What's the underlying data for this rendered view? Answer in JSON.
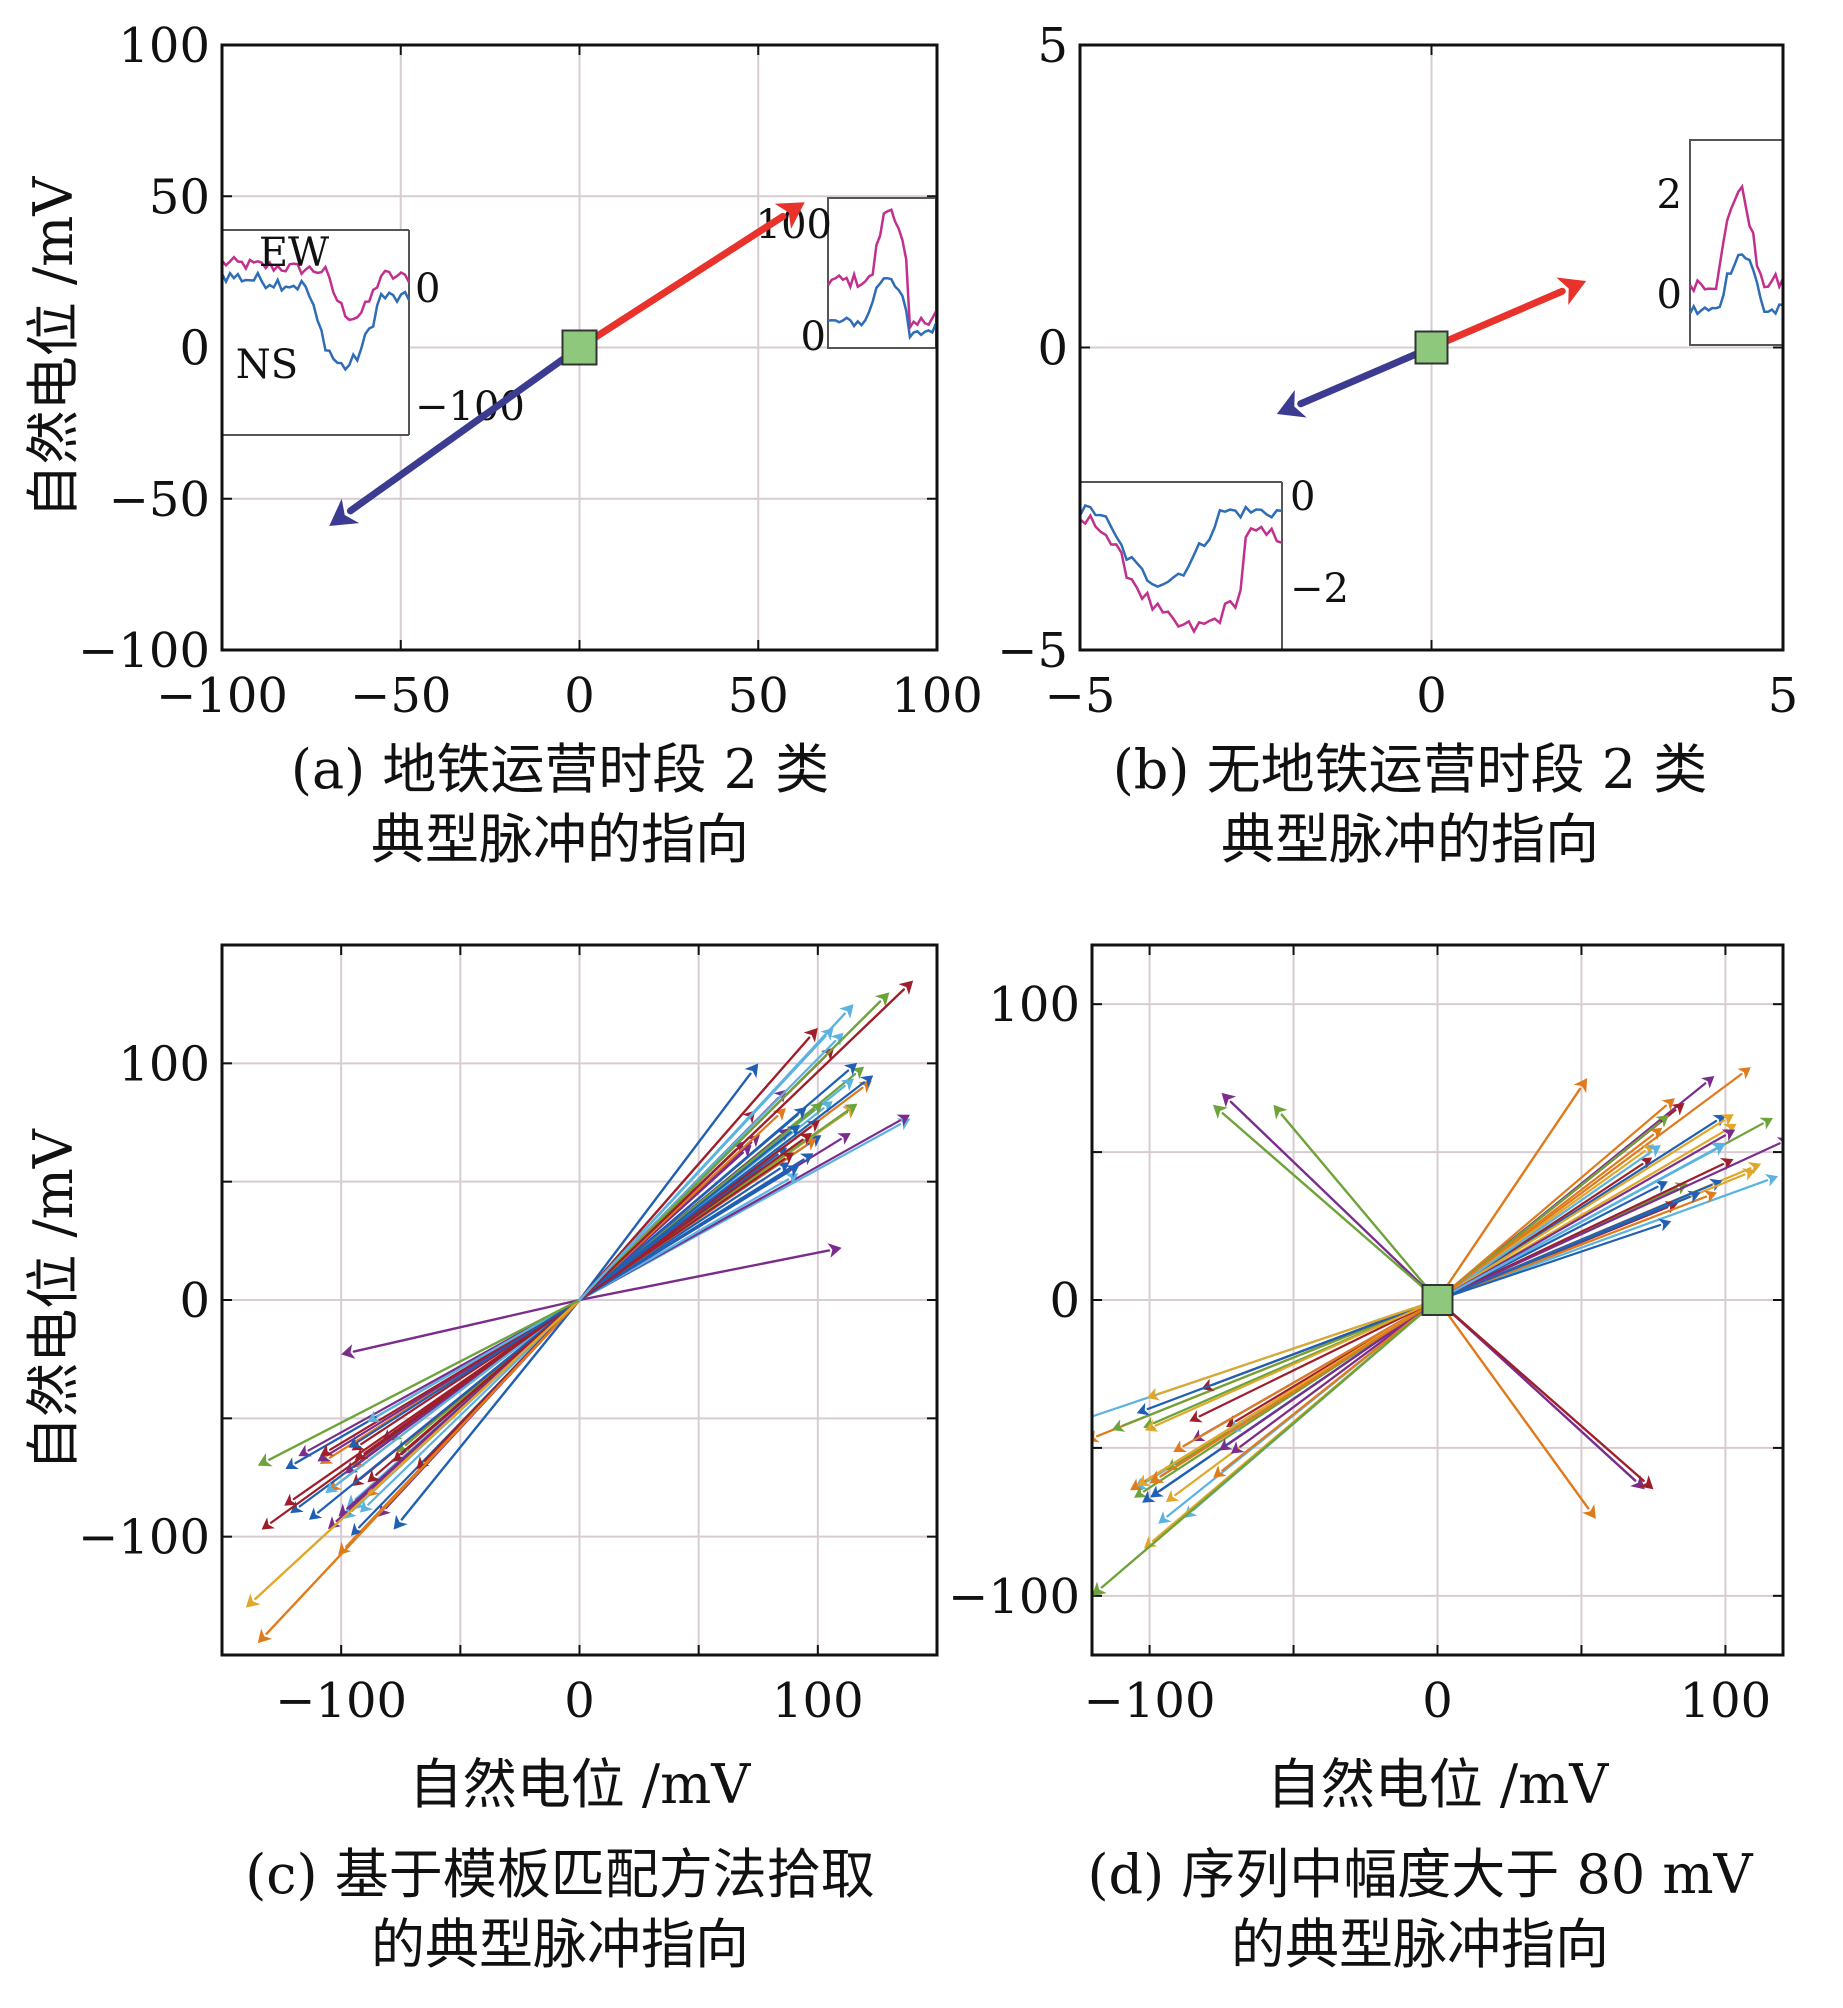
{
  "colors": {
    "purple": "#3b3b92",
    "red": "#e8322b",
    "green": "#8dc87c",
    "ew_line": "#c0308c",
    "ns_line": "#2f6db6",
    "grid": "#d7ccd2",
    "palette": [
      "#1f5fb4",
      "#e07b1d",
      "#e0a82a",
      "#7a2d8c",
      "#6ea33b",
      "#5ab3e0",
      "#9e1f2b"
    ]
  },
  "chart_data": [
    {
      "id": "a",
      "type": "scatter",
      "title": "(a) 地铁运营时段 2 类 典型脉冲的指向",
      "ylabel": "自然电位 /mV",
      "xlabel": "",
      "xlim": [
        -100,
        100
      ],
      "ylim": [
        -100,
        100
      ],
      "xticks": [
        -100,
        -50,
        0,
        50,
        100
      ],
      "yticks": [
        -100,
        -50,
        0,
        50,
        100
      ],
      "x_tick_labels": [
        "−100",
        "−50",
        "0",
        "50",
        "100"
      ],
      "y_tick_labels": [
        "−100",
        "−50",
        "0",
        "50",
        "100"
      ],
      "grid": true,
      "origin_marker": "green square",
      "vectors": [
        {
          "name": "purple",
          "dx": -70,
          "dy": -59
        },
        {
          "name": "red",
          "dx": 63,
          "dy": 48
        }
      ],
      "insets": [
        {
          "name": "left-inset",
          "labels": [
            "EW",
            "NS"
          ],
          "tick_labels": [
            "0",
            "−100"
          ],
          "ticks": [
            0,
            -100
          ]
        },
        {
          "name": "right-inset",
          "tick_labels": [
            "100",
            "0"
          ],
          "ticks": [
            100,
            0
          ]
        }
      ]
    },
    {
      "id": "b",
      "type": "scatter",
      "title": "(b) 无地铁运营时段 2 类 典型脉冲的指向",
      "ylabel": "",
      "xlabel": "",
      "xlim": [
        -5,
        5
      ],
      "ylim": [
        -5,
        5
      ],
      "xticks": [
        -5,
        0,
        5
      ],
      "yticks": [
        -5,
        0,
        5
      ],
      "x_tick_labels": [
        "−5",
        "0",
        "5"
      ],
      "y_tick_labels": [
        "−5",
        "0",
        "5"
      ],
      "grid": true,
      "origin_marker": "green square",
      "vectors": [
        {
          "name": "purple",
          "dx": -2.2,
          "dy": -1.1
        },
        {
          "name": "red",
          "dx": 2.2,
          "dy": 1.1
        }
      ],
      "insets": [
        {
          "name": "upper-right-inset",
          "tick_labels": [
            "2",
            "0"
          ],
          "ticks": [
            2,
            0
          ]
        },
        {
          "name": "lower-left-inset",
          "tick_labels": [
            "0",
            "−2"
          ],
          "ticks": [
            0,
            -2
          ]
        }
      ]
    },
    {
      "id": "c",
      "type": "scatter",
      "title": "(c) 基于模板匹配方法拾取 的典型脉冲指向",
      "ylabel": "自然电位 /mV",
      "xlabel": "自然电位 /mV",
      "xlim": [
        -150,
        150
      ],
      "ylim": [
        -150,
        150
      ],
      "xticks": [
        -100,
        0,
        100
      ],
      "yticks": [
        -100,
        0,
        100
      ],
      "x_tick_labels": [
        "−100",
        "0",
        "100"
      ],
      "y_tick_labels": [
        "−100",
        "0",
        "100"
      ],
      "grid": true,
      "vectors": [
        {
          "dx": 75,
          "dy": 100,
          "c": 0
        },
        {
          "dx": -78,
          "dy": -97,
          "c": 0
        },
        {
          "dx": 110,
          "dy": 22,
          "c": 3
        },
        {
          "dx": -100,
          "dy": -23,
          "c": 3
        },
        {
          "dx": 130,
          "dy": 130,
          "c": 4
        },
        {
          "dx": 140,
          "dy": 135,
          "c": 6
        },
        {
          "dx": -135,
          "dy": -145,
          "c": 1
        },
        {
          "dx": -140,
          "dy": -130,
          "c": 2
        },
        {
          "dx": -135,
          "dy": -70,
          "c": 4
        },
        {
          "dx": 100,
          "dy": 115,
          "c": 6
        },
        {
          "dx": 115,
          "dy": 125,
          "c": 5
        }
      ],
      "bundle": {
        "count": 70,
        "angle_range_deg": [
          28,
          48
        ],
        "length_range": [
          95,
          165
        ]
      }
    },
    {
      "id": "d",
      "type": "scatter",
      "title": "(d) 序列中幅度大于 80 mV 的典型脉冲指向",
      "ylabel": "",
      "xlabel": "自然电位 /mV",
      "xlim": [
        -120,
        120
      ],
      "ylim": [
        -120,
        120
      ],
      "xticks": [
        -100,
        0,
        100
      ],
      "yticks": [
        -100,
        0,
        100
      ],
      "x_tick_labels": [
        "−100",
        "0",
        "100"
      ],
      "y_tick_labels": [
        "−100",
        "0",
        "100"
      ],
      "grid": true,
      "origin_marker": "green square",
      "vectors": [
        {
          "dx": -75,
          "dy": 70,
          "c": 3
        },
        {
          "dx": -78,
          "dy": 66,
          "c": 4
        },
        {
          "dx": -57,
          "dy": 66,
          "c": 4
        },
        {
          "dx": 52,
          "dy": 75,
          "c": 1
        },
        {
          "dx": 72,
          "dy": -64,
          "c": 3
        },
        {
          "dx": 75,
          "dy": -64,
          "c": 6
        },
        {
          "dx": 55,
          "dy": -74,
          "c": 1
        },
        {
          "dx": -100,
          "dy": -62,
          "c": 1
        },
        {
          "dx": -120,
          "dy": -100,
          "c": 4
        }
      ],
      "bundle": {
        "count": 55,
        "angle_range_deg": [
          18,
          40
        ],
        "length_range": [
          85,
          135
        ]
      }
    }
  ]
}
